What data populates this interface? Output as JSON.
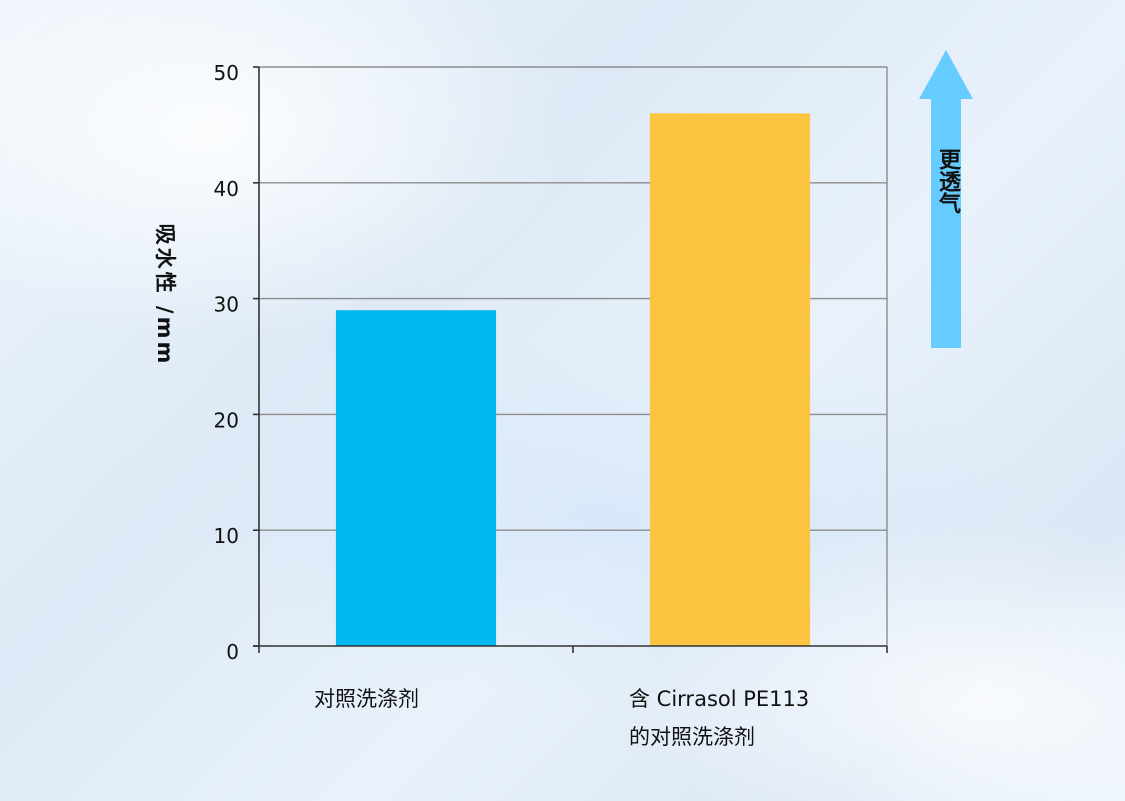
{
  "chart_data": {
    "type": "bar",
    "categories": [
      "对照洗涤剂",
      "含 Cirrasol PE113的对照洗涤剂"
    ],
    "category_lines": [
      [
        "对照洗涤剂"
      ],
      [
        "含 Cirrasol PE113",
        "的对照洗涤剂"
      ]
    ],
    "values": [
      29,
      46
    ],
    "bar_colors": [
      "#00b7f1",
      "#fdc441"
    ],
    "ylabel": "吸水性 /mm",
    "ylim": [
      0,
      50
    ],
    "yticks": [
      0,
      10,
      20,
      30,
      40,
      50
    ],
    "grid": true,
    "annotation": {
      "text": "更透气",
      "arrow_color": "#66ccff",
      "direction": "up"
    }
  }
}
